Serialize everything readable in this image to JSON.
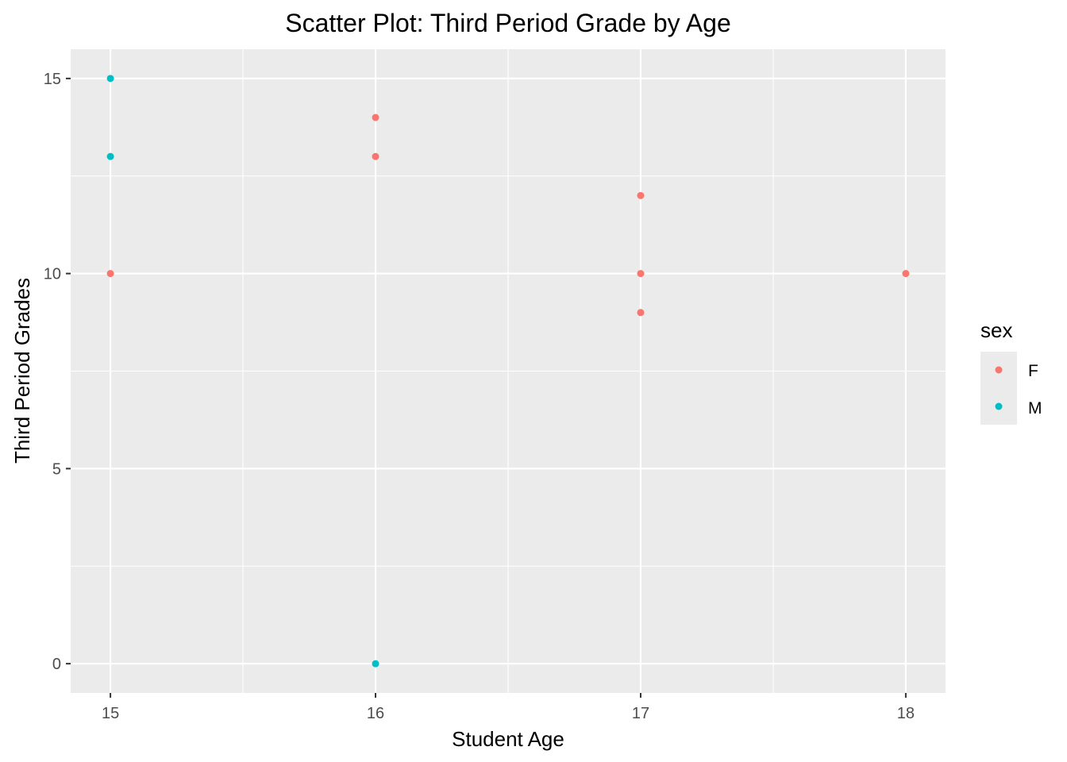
{
  "chart_data": {
    "type": "scatter",
    "title": "Scatter Plot: Third Period Grade by Age",
    "xlabel": "Student Age",
    "ylabel": "Third Period Grades",
    "xlim": [
      14.85,
      18.15
    ],
    "ylim": [
      -0.75,
      15.75
    ],
    "xticks": [
      15,
      16,
      17,
      18
    ],
    "yticks": [
      0,
      5,
      10,
      15
    ],
    "grid": true,
    "legend": {
      "title": "sex",
      "placement": "right",
      "entries": [
        "F",
        "M"
      ]
    },
    "series": [
      {
        "name": "F",
        "color": "#f8766d",
        "points": [
          {
            "x": 15,
            "y": 10
          },
          {
            "x": 16,
            "y": 14
          },
          {
            "x": 16,
            "y": 13
          },
          {
            "x": 17,
            "y": 12
          },
          {
            "x": 17,
            "y": 10
          },
          {
            "x": 17,
            "y": 9
          },
          {
            "x": 18,
            "y": 10
          }
        ]
      },
      {
        "name": "M",
        "color": "#00bfc4",
        "points": [
          {
            "x": 15,
            "y": 15
          },
          {
            "x": 15,
            "y": 13
          },
          {
            "x": 16,
            "y": 0
          }
        ]
      }
    ],
    "panel_color": "#ebebeb",
    "grid_color": "#ffffff"
  }
}
